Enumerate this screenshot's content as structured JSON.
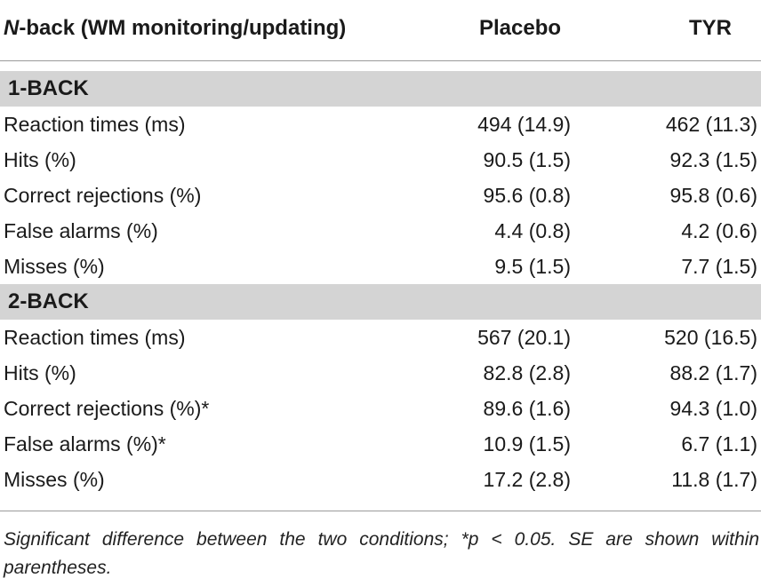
{
  "header": {
    "col1_italic": "N",
    "col1_rest": "-back (WM monitoring/updating)",
    "col2": "Placebo",
    "col3": "TYR"
  },
  "sections": [
    {
      "label": "1-BACK",
      "rows": [
        {
          "measure": "Reaction times (ms)",
          "placebo": "494 (14.9)",
          "tyr": "462 (11.3)"
        },
        {
          "measure": "Hits (%)",
          "placebo": "90.5 (1.5)",
          "tyr": "92.3 (1.5)"
        },
        {
          "measure": "Correct rejections (%)",
          "placebo": "95.6 (0.8)",
          "tyr": "95.8 (0.6)"
        },
        {
          "measure": "False alarms (%)",
          "placebo": "4.4 (0.8)",
          "tyr": "4.2 (0.6)"
        },
        {
          "measure": "Misses (%)",
          "placebo": "9.5 (1.5)",
          "tyr": "7.7 (1.5)"
        }
      ]
    },
    {
      "label": "2-BACK",
      "rows": [
        {
          "measure": "Reaction times (ms)",
          "placebo": "567 (20.1)",
          "tyr": "520 (16.5)"
        },
        {
          "measure": "Hits (%)",
          "placebo": "82.8 (2.8)",
          "tyr": "88.2 (1.7)"
        },
        {
          "measure": "Correct rejections (%)*",
          "placebo": "89.6 (1.6)",
          "tyr": "94.3 (1.0)"
        },
        {
          "measure": "False alarms (%)*",
          "placebo": "10.9 (1.5)",
          "tyr": "6.7 (1.1)"
        },
        {
          "measure": "Misses (%)",
          "placebo": "17.2 (2.8)",
          "tyr": "11.8 (1.7)"
        }
      ]
    }
  ],
  "footnote": "Significant difference between the two conditions; *p < 0.05. SE are shown within parentheses."
}
